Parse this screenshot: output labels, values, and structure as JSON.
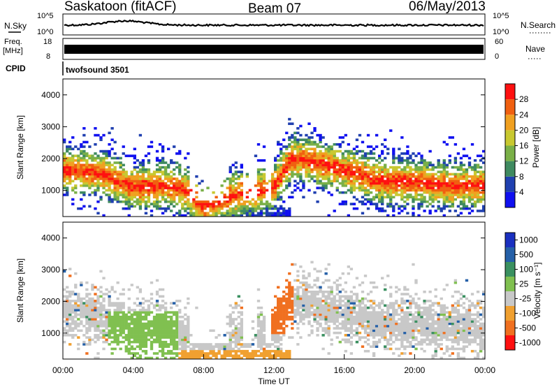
{
  "header": {
    "station": "Saskatoon (fitACF)",
    "beam": "Beam 07",
    "date": "06/May/2013"
  },
  "noise_panel": {
    "left_label": "N.Sky",
    "right_label": "N.Search",
    "left_ticks": [
      "10^5",
      "10^0"
    ],
    "right_ticks": [
      "10^5",
      "10^0"
    ]
  },
  "freq_panel": {
    "left_label_1": "Freq.",
    "left_label_2": "[MHz]",
    "right_label": "Nave",
    "left_ticks": [
      "18",
      "8"
    ],
    "right_ticks": [
      "60",
      "0"
    ]
  },
  "cpid_panel": {
    "label": "CPID",
    "text": "twofsound 3501"
  },
  "chart_data": [
    {
      "type": "heatmap",
      "panel": "power",
      "ylabel": "Slant Range [km]",
      "colorbar_label": "Power [dB]",
      "y_ticks": [
        "4000",
        "3000",
        "2000",
        "1000"
      ],
      "ylim": [
        180,
        4500
      ],
      "xlim": [
        0,
        24
      ],
      "colorbar_ticks": [
        "28",
        "24",
        "20",
        "16",
        "12",
        "8",
        "4"
      ],
      "palette": [
        "#1010f0",
        "#2040b0",
        "#3f8a60",
        "#7ab048",
        "#c8c830",
        "#f0a020",
        "#f06010",
        "#ff1010"
      ],
      "ridge_km_vs_hour": [
        [
          0,
          1650
        ],
        [
          2,
          1550
        ],
        [
          4,
          1100
        ],
        [
          6,
          1150
        ],
        [
          7,
          1000
        ],
        [
          8,
          500
        ],
        [
          10,
          900
        ],
        [
          12,
          1100
        ],
        [
          13,
          2000
        ],
        [
          14,
          1950
        ],
        [
          16,
          1650
        ],
        [
          18,
          1300
        ],
        [
          20,
          1250
        ],
        [
          22,
          1150
        ],
        [
          24,
          1150
        ]
      ]
    },
    {
      "type": "heatmap",
      "panel": "velocity",
      "ylabel": "Slant Range [km]",
      "colorbar_label": "Velocity [m s⁻¹]",
      "y_ticks": [
        "4000",
        "3000",
        "2000",
        "1000"
      ],
      "ylim": [
        180,
        4500
      ],
      "xlim": [
        0,
        24
      ],
      "colorbar_ticks": [
        "1000",
        "500",
        "100",
        "25",
        "-25",
        "-100",
        "-500",
        "-1000"
      ],
      "palette": [
        "#1a30c0",
        "#2560a8",
        "#3a9060",
        "#80c050",
        "#c8c8c8",
        "#f0a030",
        "#f07020",
        "#ff1010"
      ],
      "x_ticks": [
        "00:00",
        "04:00",
        "08:00",
        "12:00",
        "16:00",
        "20:00",
        "00:00"
      ],
      "xlabel": "Time UT"
    }
  ]
}
